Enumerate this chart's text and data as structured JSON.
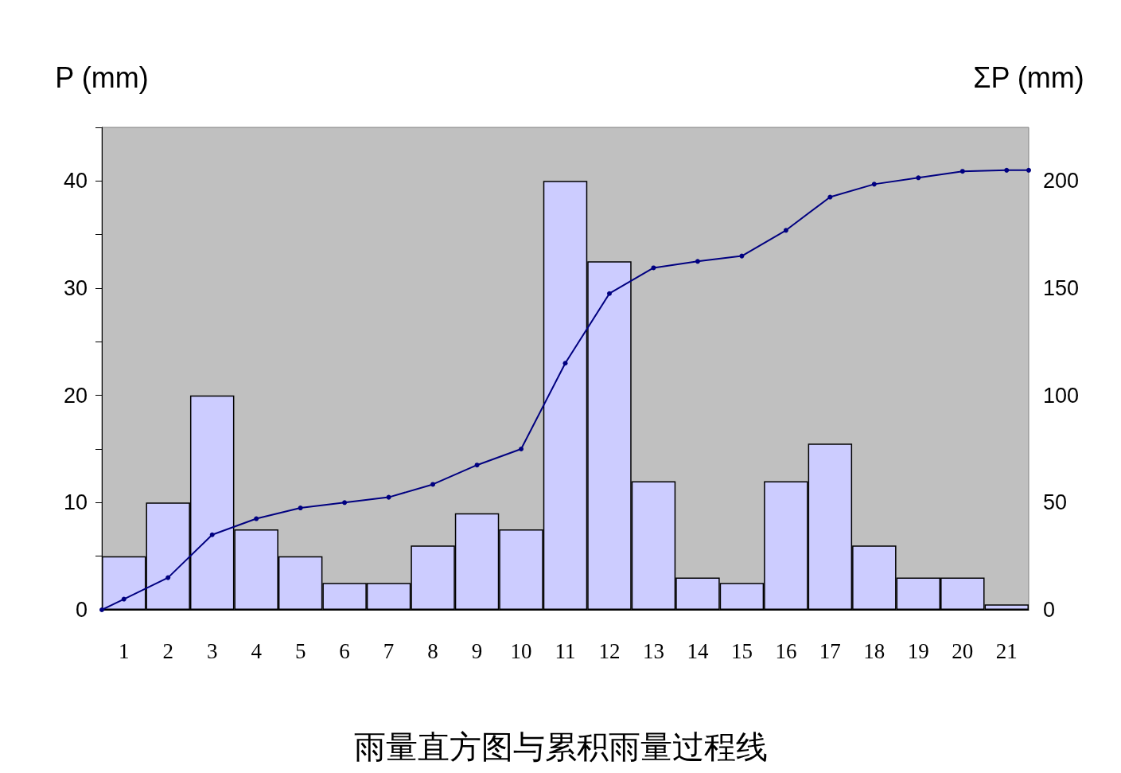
{
  "chart_data": {
    "type": "bar",
    "title": "雨量直方图与累积雨量过程线",
    "ylabel": "P (mm)",
    "y2label": "ΣP (mm)",
    "x": [
      1,
      2,
      3,
      4,
      5,
      6,
      7,
      8,
      9,
      10,
      11,
      12,
      13,
      14,
      15,
      16,
      17,
      18,
      19,
      20,
      21
    ],
    "xlim": [
      0.5,
      21.5
    ],
    "xticks": [
      1,
      2,
      3,
      4,
      5,
      6,
      7,
      8,
      9,
      10,
      11,
      12,
      13,
      14,
      15,
      16,
      17,
      18,
      19,
      20,
      21
    ],
    "ylim": [
      0,
      45
    ],
    "yticks": [
      0,
      {
        "value": 5,
        "label": null
      },
      10,
      {
        "value": 15,
        "label": null
      },
      20,
      {
        "value": 25,
        "label": null
      },
      30,
      {
        "value": 35,
        "label": null
      },
      40,
      {
        "value": 45,
        "label": null
      }
    ],
    "y2lim": [
      0,
      225
    ],
    "y2ticks": [
      0,
      50,
      100,
      150,
      200
    ],
    "grid": false,
    "series": [
      {
        "color": "#ccccff",
        "values": [
          5,
          10,
          20,
          7.5,
          5,
          2.5,
          2.5,
          6,
          9,
          7.5,
          40,
          32.5,
          12,
          3,
          2.5,
          12,
          15.5,
          6,
          3,
          3,
          0.5
        ]
      },
      {
        "type": "line",
        "axis": "y2",
        "color": "#000080",
        "marker": "circle",
        "x": [
          0.5,
          1,
          2,
          3,
          4,
          5,
          6,
          7,
          8,
          9,
          10,
          11,
          12,
          13,
          14,
          15,
          16,
          17,
          18,
          19,
          20,
          21,
          21.5
        ],
        "values": [
          0,
          5,
          15,
          35,
          42.5,
          47.5,
          50,
          52.5,
          58.5,
          67.5,
          75,
          115,
          147.5,
          159.5,
          162.5,
          165,
          177,
          192.5,
          198.5,
          201.5,
          204.5,
          205,
          205
        ]
      }
    ]
  }
}
